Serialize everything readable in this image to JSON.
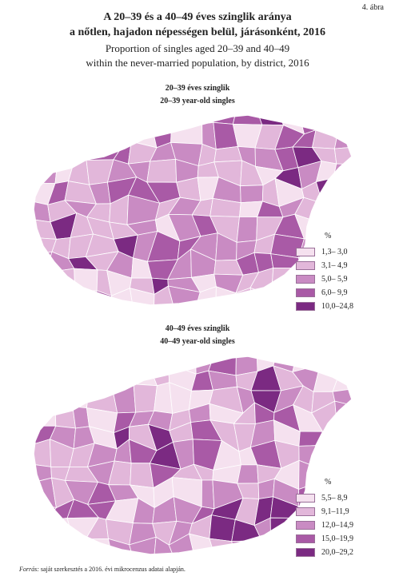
{
  "figure_number": "4. ábra",
  "title_hu_line1": "A 20–39 és a 40–49 éves szinglik aránya",
  "title_hu_line2": "a nőtlen, hajadon népességen belül, járásonként, 2016",
  "title_en_line1": "Proportion of singles aged 20–39 and 40–49",
  "title_en_line2": "within the never-married population, by district, 2016",
  "maps": [
    {
      "title_hu": "20–39 éves szinglik",
      "title_en": "20–39 year-old singles",
      "legend_unit": "%",
      "legend": [
        {
          "label": "1,3– 3,0",
          "color": "#f5e1ef"
        },
        {
          "label": "3,1– 4,9",
          "color": "#e2b7da"
        },
        {
          "label": "5,0– 5,9",
          "color": "#c98bc3"
        },
        {
          "label": "6,0– 9,9",
          "color": "#a95aa6"
        },
        {
          "label": "10,0–24,8",
          "color": "#7b2a82"
        }
      ]
    },
    {
      "title_hu": "40–49 éves szinglik",
      "title_en": "40–49 year-old singles",
      "legend_unit": "%",
      "legend": [
        {
          "label": "5,5– 8,9",
          "color": "#f5e1ef"
        },
        {
          "label": "9,1–11,9",
          "color": "#e2b7da"
        },
        {
          "label": "12,0–14,9",
          "color": "#c98bc3"
        },
        {
          "label": "15,0–19,9",
          "color": "#a95aa6"
        },
        {
          "label": "20,0–29,2",
          "color": "#7b2a82"
        }
      ]
    }
  ],
  "source_prefix": "Forrás:",
  "source_text": "saját szerkesztés a 2016. évi mikrocenzus adatai alapján."
}
